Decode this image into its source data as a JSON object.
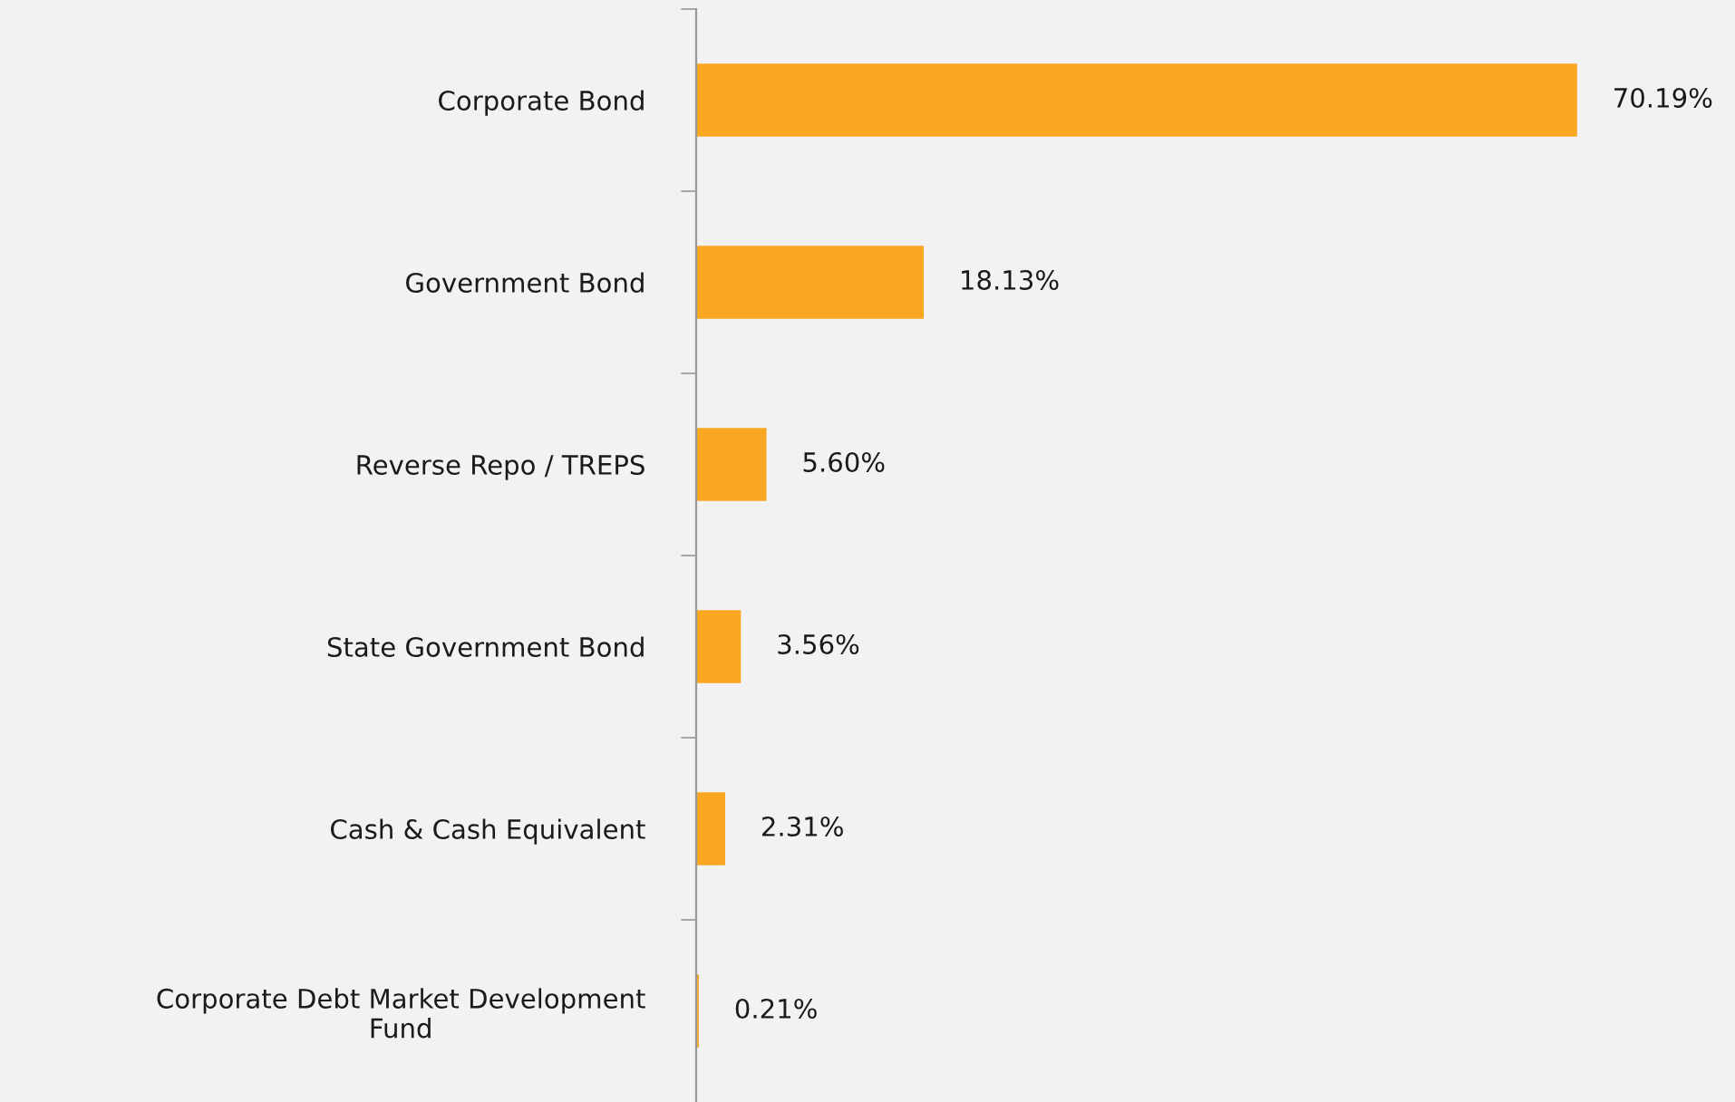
{
  "chart_data": {
    "type": "bar",
    "orientation": "horizontal",
    "categories": [
      "Corporate Bond",
      "Government Bond",
      "Reverse Repo / TREPS",
      "State Government Bond",
      "Cash & Cash Equivalent",
      "Corporate Debt Market Development\nFund"
    ],
    "values": [
      70.19,
      18.13,
      5.6,
      3.56,
      2.31,
      0.21
    ],
    "value_labels": [
      "70.19%",
      "18.13%",
      "5.60%",
      "3.56%",
      "2.31%",
      "0.21%"
    ],
    "color": "#f9a620",
    "grid": false,
    "legend": false
  }
}
